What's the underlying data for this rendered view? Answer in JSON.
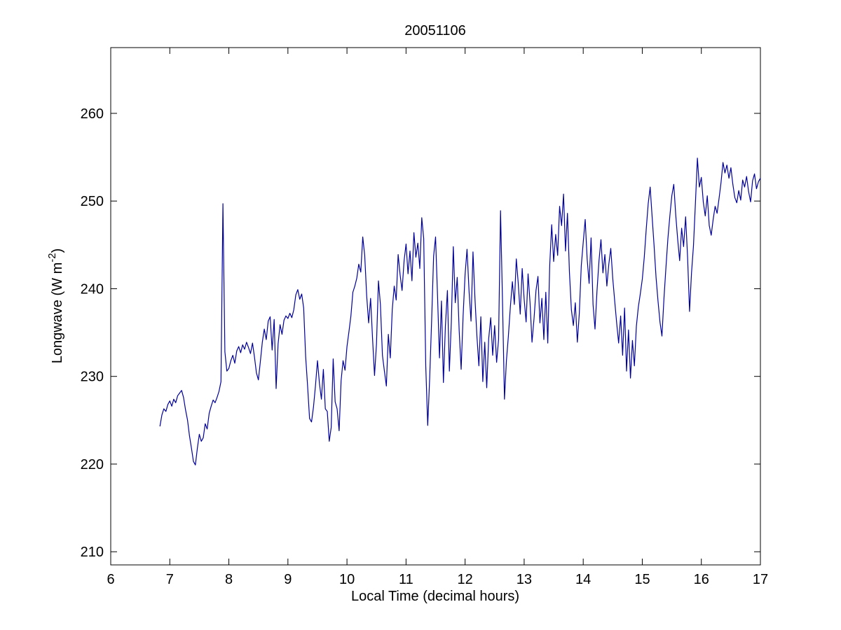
{
  "chart_data": {
    "type": "line",
    "title": "20051106",
    "xlabel": "Local Time (decimal hours)",
    "ylabel": "Longwave (W m^-2)",
    "ylabel_parts": {
      "pre": "Longwave (W m",
      "sup": "-2",
      "post": ")"
    },
    "xlim": [
      6,
      17
    ],
    "ylim": [
      208.5,
      267.5
    ],
    "xticks": [
      6,
      7,
      8,
      9,
      10,
      11,
      12,
      13,
      14,
      15,
      16,
      17
    ],
    "yticks": [
      210,
      220,
      230,
      240,
      250,
      260
    ],
    "grid": false,
    "legend": null,
    "line_color": "#000099",
    "axis_color": "#000000",
    "background": "#ffffff",
    "series": [
      {
        "name": "longwave",
        "t_start": 6.8333,
        "t_step": 0.0333333,
        "values": [
          224.3,
          225.6,
          226.3,
          226.0,
          226.8,
          227.2,
          226.6,
          227.4,
          227.0,
          227.8,
          228.1,
          228.4,
          227.6,
          226.2,
          225.0,
          223.2,
          221.8,
          220.3,
          219.9,
          221.8,
          223.4,
          222.6,
          223.0,
          224.6,
          224.0,
          225.8,
          226.6,
          227.3,
          227.0,
          227.6,
          228.3,
          229.4,
          249.7,
          232.8,
          230.6,
          230.9,
          231.8,
          232.4,
          231.5,
          232.9,
          233.4,
          232.7,
          233.6,
          233.1,
          233.9,
          233.3,
          232.6,
          233.8,
          232.2,
          230.4,
          229.6,
          231.7,
          233.9,
          235.4,
          234.2,
          236.3,
          236.8,
          233.0,
          236.5,
          228.6,
          233.7,
          235.9,
          234.8,
          236.4,
          236.9,
          236.6,
          237.2,
          236.7,
          237.6,
          239.3,
          239.9,
          238.8,
          239.4,
          237.8,
          232.3,
          228.9,
          225.2,
          224.8,
          226.5,
          228.9,
          231.8,
          229.2,
          227.4,
          230.8,
          226.3,
          226.0,
          222.6,
          224.2,
          232.0,
          227.1,
          226.3,
          223.8,
          229.5,
          231.8,
          230.7,
          233.4,
          235.1,
          236.9,
          239.6,
          240.3,
          241.2,
          242.8,
          241.9,
          245.9,
          243.8,
          239.2,
          236.1,
          238.9,
          234.3,
          230.1,
          233.7,
          240.9,
          238.2,
          232.4,
          230.6,
          228.9,
          234.8,
          232.1,
          237.6,
          240.3,
          238.7,
          243.9,
          241.6,
          239.8,
          243.2,
          245.1,
          241.7,
          244.3,
          240.9,
          246.4,
          243.6,
          245.2,
          242.3,
          248.1,
          245.7,
          231.2,
          224.4,
          229.8,
          236.4,
          243.7,
          245.9,
          239.2,
          232.1,
          238.6,
          229.3,
          235.7,
          239.8,
          230.6,
          236.2,
          244.8,
          238.4,
          241.3,
          235.2,
          230.8,
          236.9,
          241.6,
          244.5,
          239.7,
          236.3,
          244.2,
          238.9,
          234.6,
          231.2,
          236.8,
          229.4,
          233.9,
          228.7,
          234.3,
          236.7,
          232.4,
          235.8,
          231.6,
          234.2,
          248.9,
          238.6,
          227.4,
          231.8,
          234.6,
          237.9,
          240.8,
          238.2,
          243.4,
          240.6,
          237.1,
          242.3,
          238.8,
          236.2,
          241.7,
          238.4,
          233.9,
          236.6,
          239.8,
          241.4,
          236.1,
          238.9,
          234.2,
          239.6,
          233.8,
          242.7,
          247.3,
          243.1,
          246.2,
          243.8,
          249.4,
          247.2,
          250.8,
          244.3,
          248.6,
          241.9,
          237.6,
          235.8,
          238.4,
          233.9,
          237.2,
          242.6,
          245.3,
          247.9,
          243.4,
          240.6,
          245.8,
          238.2,
          235.4,
          239.7,
          243.2,
          245.6,
          241.8,
          243.9,
          240.3,
          242.8,
          244.6,
          241.2,
          238.6,
          236.1,
          233.8,
          236.9,
          232.4,
          237.8,
          230.6,
          235.3,
          229.8,
          234.1,
          231.2,
          235.7,
          237.9,
          239.4,
          241.1,
          243.6,
          246.8,
          249.7,
          251.6,
          248.2,
          244.9,
          241.3,
          238.6,
          236.2,
          234.6,
          238.9,
          242.4,
          245.7,
          248.3,
          250.6,
          251.9,
          248.4,
          245.6,
          243.2,
          246.9,
          244.8,
          248.2,
          243.6,
          237.4,
          241.8,
          244.9,
          249.8,
          254.9,
          251.6,
          252.7,
          249.9,
          248.3,
          250.6,
          247.2,
          246.1,
          247.9,
          249.4,
          248.6,
          250.3,
          252.1,
          254.4,
          253.2,
          254.1,
          252.6,
          253.8,
          251.9,
          250.4,
          249.8,
          251.2,
          250.1,
          252.4,
          251.6,
          252.8,
          251.1,
          249.9,
          252.3,
          253.1,
          251.4,
          252.2,
          252.6
        ]
      }
    ]
  }
}
